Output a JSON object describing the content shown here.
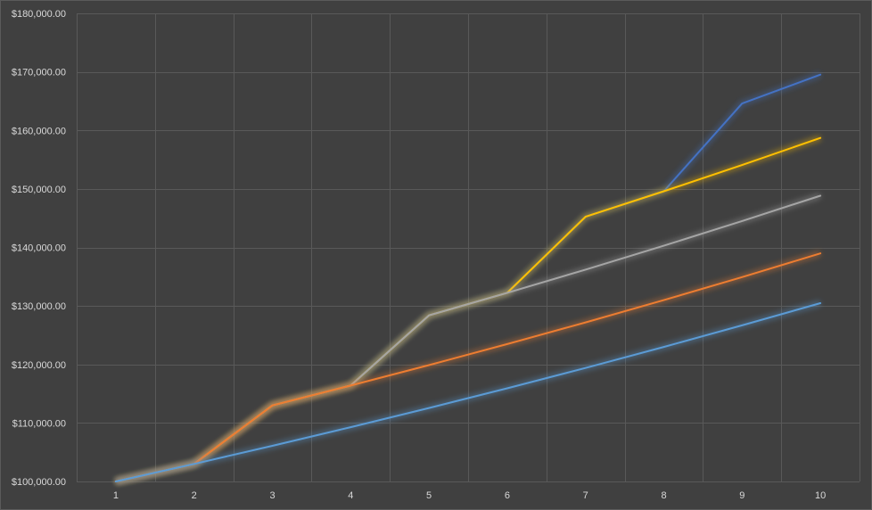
{
  "chart_data": {
    "type": "line",
    "title": "",
    "xlabel": "",
    "ylabel": "",
    "x": [
      1,
      2,
      3,
      4,
      5,
      6,
      7,
      8,
      9,
      10
    ],
    "x_tick_labels": [
      "1",
      "2",
      "3",
      "4",
      "5",
      "6",
      "7",
      "8",
      "9",
      "10"
    ],
    "ylim": [
      100000,
      180000
    ],
    "y_tick_values": [
      100000,
      110000,
      120000,
      130000,
      140000,
      150000,
      160000,
      170000,
      180000
    ],
    "y_tick_labels": [
      "$100,000.00",
      "$110,000.00",
      "$120,000.00",
      "$130,000.00",
      "$140,000.00",
      "$150,000.00",
      "$160,000.00",
      "$170,000.00",
      "$180,000.00"
    ],
    "grid": true,
    "legend": "none",
    "series": [
      {
        "color": "#5b9bd5",
        "values": [
          100000,
          103000,
          106090,
          109273,
          112551,
          115927,
          119405,
          122987,
          126677,
          130477
        ]
      },
      {
        "color": "#ed7d31",
        "values": [
          100000,
          103000,
          113000,
          116390,
          119882,
          123478,
          127183,
          130998,
          134928,
          138976
        ]
      },
      {
        "color": "#a5a5a5",
        "values": [
          100000,
          103000,
          113000,
          116390,
          128390,
          132242,
          136209,
          140295,
          144504,
          148839
        ]
      },
      {
        "color": "#ffc000",
        "values": [
          100000,
          103000,
          113000,
          116390,
          128390,
          132242,
          145242,
          149599,
          154087,
          158710
        ]
      },
      {
        "color": "#4472c4",
        "values": [
          100000,
          103000,
          113000,
          116390,
          128390,
          132242,
          145242,
          149599,
          164599,
          169537
        ]
      }
    ]
  }
}
